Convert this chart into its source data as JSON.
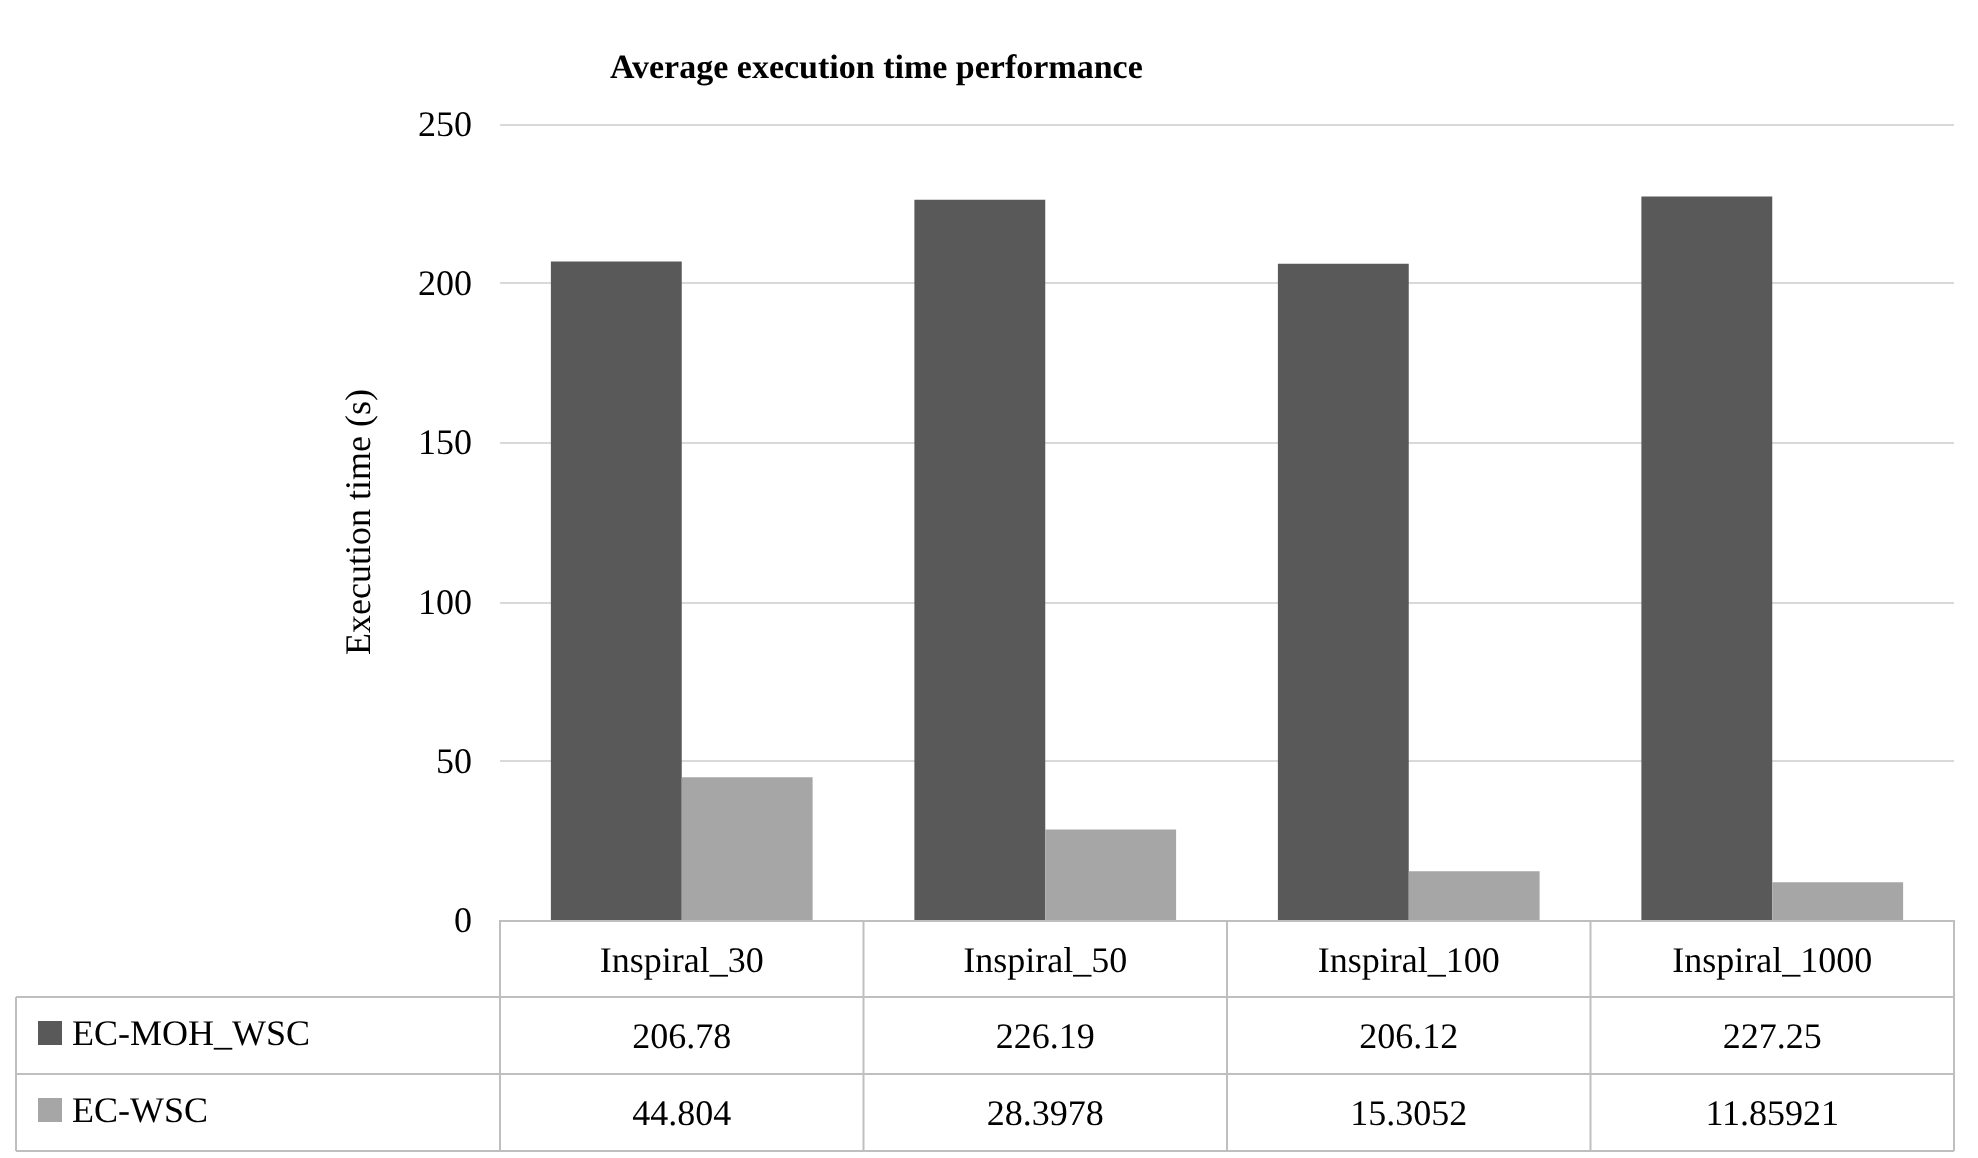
{
  "chart_data": {
    "type": "bar",
    "title": "Average execution time performance",
    "ylabel": "Execution time (s)",
    "categories": [
      "Inspiral_30",
      "Inspiral_50",
      "Inspiral_100",
      "Inspiral_1000"
    ],
    "series": [
      {
        "name": "EC-MOH_WSC",
        "color": "#595959",
        "values": [
          206.78,
          226.19,
          206.12,
          227.25
        ]
      },
      {
        "name": "EC-WSC",
        "color": "#a6a6a6",
        "values": [
          44.804,
          28.3978,
          15.3052,
          11.85921
        ]
      }
    ],
    "ylim": [
      0,
      250
    ],
    "yticks": [
      0,
      50,
      100,
      150,
      200,
      250
    ],
    "grid": "y",
    "legend": "bottom left",
    "data_labels": true
  }
}
